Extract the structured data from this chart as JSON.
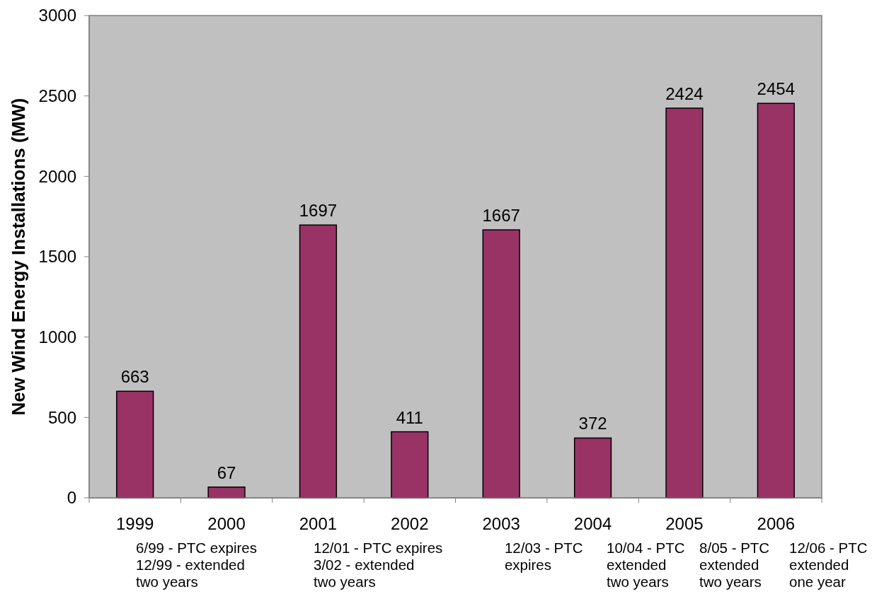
{
  "chart_data": {
    "type": "bar",
    "ylabel": "New Wind Energy Installations (MW)",
    "categories": [
      "1999",
      "2000",
      "2001",
      "2002",
      "2003",
      "2004",
      "2005",
      "2006"
    ],
    "values": [
      663,
      67,
      1697,
      411,
      1667,
      372,
      2424,
      2454
    ],
    "color": "#993366",
    "ylim": [
      0,
      3000
    ],
    "yticks": [
      0,
      500,
      1000,
      1500,
      2000,
      2500,
      3000
    ],
    "data_labels": true,
    "annotations": [
      "6/99 - PTC expires\n12/99 - extended\ntwo years",
      "12/01 - PTC expires\n3/02 - extended\ntwo years",
      "12/03 - PTC\nexpires",
      "10/04 - PTC\nextended\ntwo years",
      "8/05 - PTC\nextended\ntwo years",
      "12/06 - PTC\nextended\none year"
    ]
  }
}
